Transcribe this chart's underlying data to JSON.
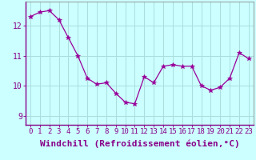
{
  "x": [
    0,
    1,
    2,
    3,
    4,
    5,
    6,
    7,
    8,
    9,
    10,
    11,
    12,
    13,
    14,
    15,
    16,
    17,
    18,
    19,
    20,
    21,
    22,
    23
  ],
  "y": [
    12.3,
    12.45,
    12.5,
    12.2,
    11.6,
    11.0,
    10.25,
    10.05,
    10.1,
    9.75,
    9.45,
    9.4,
    10.3,
    10.1,
    10.65,
    10.7,
    10.65,
    10.65,
    10.0,
    9.85,
    9.95,
    10.25,
    11.1,
    10.9
  ],
  "line_color": "#990099",
  "marker": "*",
  "marker_size": 4,
  "bg_color": "#ccffff",
  "grid_color": "#aadddd",
  "xlabel": "Windchill (Refroidissement éolien,°C)",
  "xlabel_fontsize": 8,
  "ylabel_ticks": [
    9,
    10,
    11,
    12
  ],
  "xtick_labels": [
    "0",
    "1",
    "2",
    "3",
    "4",
    "5",
    "6",
    "7",
    "8",
    "9",
    "10",
    "11",
    "12",
    "13",
    "14",
    "15",
    "16",
    "17",
    "18",
    "19",
    "20",
    "21",
    "22",
    "23"
  ],
  "xlim": [
    -0.5,
    23.5
  ],
  "ylim": [
    8.7,
    12.8
  ],
  "tick_fontsize": 6.5,
  "label_color": "#880088",
  "spine_color": "#888888"
}
